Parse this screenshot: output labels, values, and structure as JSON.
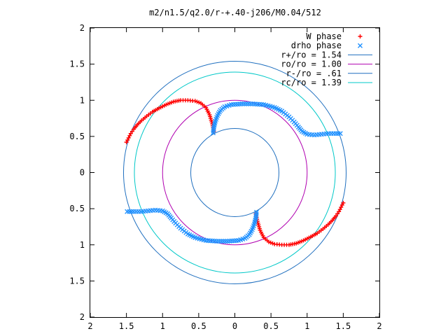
{
  "chart_data": {
    "type": "scatter",
    "title": "m2/n1.5/q2.0/r-+.40-j206/M0.04/512",
    "xlabel": "",
    "ylabel": "",
    "xlim": [
      -2,
      2
    ],
    "ylim": [
      -2,
      2
    ],
    "x_ticks": [
      -2,
      -1.5,
      -1,
      -0.5,
      0,
      0.5,
      1,
      1.5,
      2
    ],
    "y_ticks": [
      -2,
      -1.5,
      -1,
      -0.5,
      0,
      0.5,
      1,
      1.5,
      2
    ],
    "x_tick_labels": [
      "2",
      "1.5",
      "1",
      "0.5",
      "0",
      "0.5",
      "1",
      "1.5",
      "2"
    ],
    "y_tick_labels": [
      "2",
      "1.5",
      "1",
      "0.5",
      "0",
      "0.5",
      "1",
      "1.5",
      "2"
    ],
    "grid": false,
    "legend_position": "top-right",
    "series": [
      {
        "name": "W phase",
        "kind": "points",
        "marker": "plus",
        "color": "#ff0000",
        "points": [
          [
            -1.5,
            0.42
          ],
          [
            -1.47,
            0.48
          ],
          [
            -1.44,
            0.54
          ],
          [
            -1.4,
            0.6
          ],
          [
            -1.35,
            0.66
          ],
          [
            -1.29,
            0.72
          ],
          [
            -1.22,
            0.78
          ],
          [
            -1.14,
            0.84
          ],
          [
            -1.05,
            0.89
          ],
          [
            -0.95,
            0.94
          ],
          [
            -0.85,
            0.98
          ],
          [
            -0.75,
            1.0
          ],
          [
            -0.65,
            1.0
          ],
          [
            -0.55,
            0.99
          ],
          [
            -0.47,
            0.96
          ],
          [
            -0.4,
            0.9
          ],
          [
            -0.35,
            0.8
          ],
          [
            -0.32,
            0.7
          ],
          [
            -0.3,
            0.62
          ],
          [
            -0.29,
            0.57
          ],
          [
            1.5,
            -0.42
          ],
          [
            1.47,
            -0.48
          ],
          [
            1.44,
            -0.54
          ],
          [
            1.4,
            -0.6
          ],
          [
            1.35,
            -0.66
          ],
          [
            1.29,
            -0.72
          ],
          [
            1.22,
            -0.78
          ],
          [
            1.14,
            -0.84
          ],
          [
            1.05,
            -0.89
          ],
          [
            0.95,
            -0.94
          ],
          [
            0.85,
            -0.98
          ],
          [
            0.75,
            -1.0
          ],
          [
            0.65,
            -1.0
          ],
          [
            0.55,
            -0.99
          ],
          [
            0.47,
            -0.96
          ],
          [
            0.4,
            -0.9
          ],
          [
            0.35,
            -0.8
          ],
          [
            0.32,
            -0.7
          ],
          [
            0.3,
            -0.62
          ],
          [
            0.29,
            -0.57
          ]
        ]
      },
      {
        "name": "drho phase",
        "kind": "points",
        "marker": "cross",
        "color": "#1e90ff",
        "points": [
          [
            -0.3,
            0.55
          ],
          [
            -0.29,
            0.63
          ],
          [
            -0.27,
            0.71
          ],
          [
            -0.24,
            0.79
          ],
          [
            -0.2,
            0.86
          ],
          [
            -0.14,
            0.91
          ],
          [
            -0.05,
            0.94
          ],
          [
            0.1,
            0.95
          ],
          [
            0.25,
            0.95
          ],
          [
            0.4,
            0.94
          ],
          [
            0.55,
            0.9
          ],
          [
            0.65,
            0.85
          ],
          [
            0.75,
            0.77
          ],
          [
            0.82,
            0.7
          ],
          [
            0.88,
            0.63
          ],
          [
            0.93,
            0.57
          ],
          [
            1.0,
            0.53
          ],
          [
            1.1,
            0.52
          ],
          [
            1.2,
            0.53
          ],
          [
            1.3,
            0.54
          ],
          [
            1.4,
            0.54
          ],
          [
            1.46,
            0.54
          ],
          [
            0.3,
            -0.55
          ],
          [
            0.29,
            -0.63
          ],
          [
            0.27,
            -0.71
          ],
          [
            0.24,
            -0.79
          ],
          [
            0.2,
            -0.86
          ],
          [
            0.14,
            -0.91
          ],
          [
            0.05,
            -0.94
          ],
          [
            -0.1,
            -0.95
          ],
          [
            -0.25,
            -0.95
          ],
          [
            -0.4,
            -0.94
          ],
          [
            -0.55,
            -0.9
          ],
          [
            -0.65,
            -0.85
          ],
          [
            -0.75,
            -0.77
          ],
          [
            -0.82,
            -0.7
          ],
          [
            -0.88,
            -0.63
          ],
          [
            -0.93,
            -0.57
          ],
          [
            -1.0,
            -0.53
          ],
          [
            -1.1,
            -0.52
          ],
          [
            -1.2,
            -0.53
          ],
          [
            -1.3,
            -0.54
          ],
          [
            -1.4,
            -0.54
          ],
          [
            -1.49,
            -0.54
          ]
        ]
      },
      {
        "name": "r+/ro = 1.54",
        "kind": "circle",
        "radius": 1.54,
        "color": "#1f6fbf"
      },
      {
        "name": "ro/ro = 1.00",
        "kind": "circle",
        "radius": 1.0,
        "color": "#b000b0"
      },
      {
        "name": "r-/ro = .61",
        "kind": "circle",
        "radius": 0.61,
        "color": "#1f6fbf"
      },
      {
        "name": "rc/ro = 1.39",
        "kind": "circle",
        "radius": 1.39,
        "color": "#00c8c8"
      }
    ]
  }
}
